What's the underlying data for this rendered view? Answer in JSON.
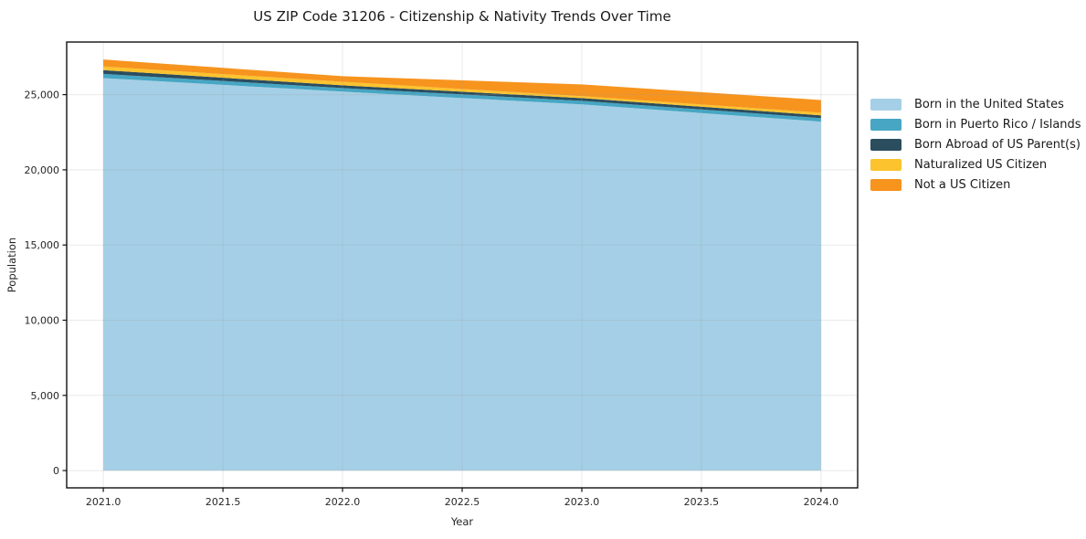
{
  "chart_data": {
    "type": "area",
    "stacked": true,
    "title": "US ZIP Code 31206 - Citizenship & Nativity Trends Over Time",
    "xlabel": "Year",
    "ylabel": "Population",
    "x": [
      2021,
      2022,
      2023,
      2024
    ],
    "series": [
      {
        "name": "Born in the United States",
        "color": "#a5cfe6",
        "values": [
          26100,
          25200,
          24350,
          23200
        ]
      },
      {
        "name": "Born in Puerto Rico / Islands",
        "color": "#46a6c3",
        "values": [
          280,
          240,
          240,
          240
        ]
      },
      {
        "name": "Born Abroad of US Parent(s)",
        "color": "#2b4d5e",
        "values": [
          250,
          180,
          180,
          180
        ]
      },
      {
        "name": "Naturalized US Citizen",
        "color": "#fcc32e",
        "values": [
          240,
          240,
          130,
          180
        ]
      },
      {
        "name": "Not a US Citizen",
        "color": "#f7941e",
        "values": [
          470,
          370,
          780,
          840
        ]
      }
    ],
    "totals_by_year": [
      27340,
      26230,
      25680,
      24640
    ],
    "xlim": [
      2020.847,
      2024.153
    ],
    "ylim": [
      -1150,
      28500
    ],
    "xticks": {
      "values": [
        2021,
        2021.5,
        2022,
        2022.5,
        2023,
        2023.5,
        2024
      ],
      "labels": [
        "2021.0",
        "2021.5",
        "2022.0",
        "2022.5",
        "2023.0",
        "2023.5",
        "2024.0"
      ]
    },
    "yticks": {
      "values": [
        0,
        5000,
        10000,
        15000,
        20000,
        25000
      ],
      "labels": [
        "0",
        "5,000",
        "10,000",
        "15,000",
        "20,000",
        "25,000"
      ]
    },
    "grid": true,
    "legend_position": "right-outside"
  },
  "colors": {
    "background": "#ffffff",
    "spine": "#111111",
    "grid": "#999999",
    "tick": "#111111",
    "text": "#262626"
  }
}
